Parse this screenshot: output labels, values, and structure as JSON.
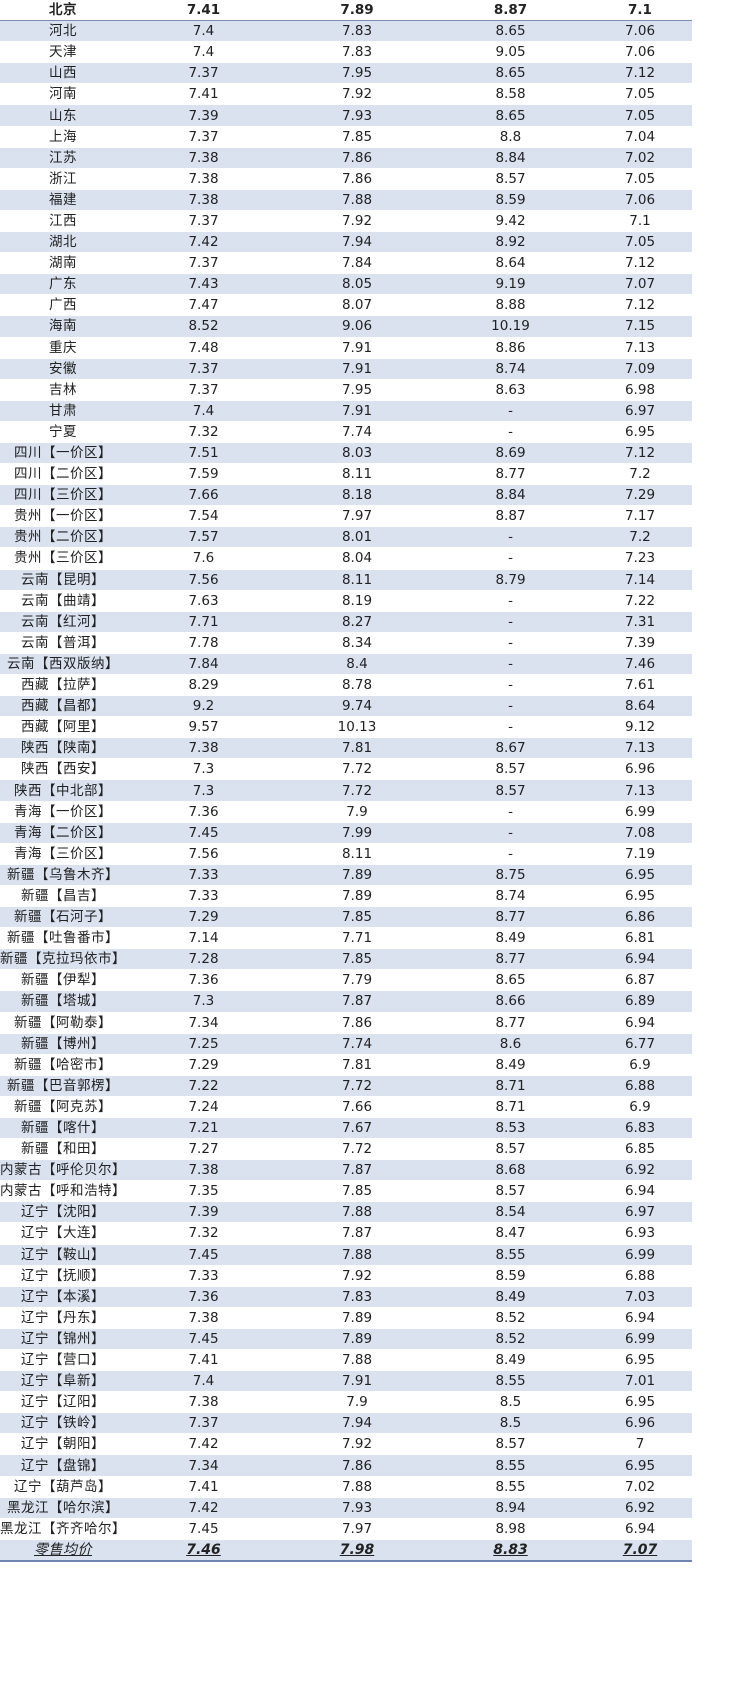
{
  "rows": [
    {
      "region": "北京",
      "v1": "7.41",
      "v2": "7.89",
      "v3": "8.87",
      "v4": "7.1"
    },
    {
      "region": "河北",
      "v1": "7.4",
      "v2": "7.83",
      "v3": "8.65",
      "v4": "7.06"
    },
    {
      "region": "天津",
      "v1": "7.4",
      "v2": "7.83",
      "v3": "9.05",
      "v4": "7.06"
    },
    {
      "region": "山西",
      "v1": "7.37",
      "v2": "7.95",
      "v3": "8.65",
      "v4": "7.12"
    },
    {
      "region": "河南",
      "v1": "7.41",
      "v2": "7.92",
      "v3": "8.58",
      "v4": "7.05"
    },
    {
      "region": "山东",
      "v1": "7.39",
      "v2": "7.93",
      "v3": "8.65",
      "v4": "7.05"
    },
    {
      "region": "上海",
      "v1": "7.37",
      "v2": "7.85",
      "v3": "8.8",
      "v4": "7.04"
    },
    {
      "region": "江苏",
      "v1": "7.38",
      "v2": "7.86",
      "v3": "8.84",
      "v4": "7.02"
    },
    {
      "region": "浙江",
      "v1": "7.38",
      "v2": "7.86",
      "v3": "8.57",
      "v4": "7.05"
    },
    {
      "region": "福建",
      "v1": "7.38",
      "v2": "7.88",
      "v3": "8.59",
      "v4": "7.06"
    },
    {
      "region": "江西",
      "v1": "7.37",
      "v2": "7.92",
      "v3": "9.42",
      "v4": "7.1"
    },
    {
      "region": "湖北",
      "v1": "7.42",
      "v2": "7.94",
      "v3": "8.92",
      "v4": "7.05"
    },
    {
      "region": "湖南",
      "v1": "7.37",
      "v2": "7.84",
      "v3": "8.64",
      "v4": "7.12"
    },
    {
      "region": "广东",
      "v1": "7.43",
      "v2": "8.05",
      "v3": "9.19",
      "v4": "7.07"
    },
    {
      "region": "广西",
      "v1": "7.47",
      "v2": "8.07",
      "v3": "8.88",
      "v4": "7.12"
    },
    {
      "region": "海南",
      "v1": "8.52",
      "v2": "9.06",
      "v3": "10.19",
      "v4": "7.15"
    },
    {
      "region": "重庆",
      "v1": "7.48",
      "v2": "7.91",
      "v3": "8.86",
      "v4": "7.13"
    },
    {
      "region": "安徽",
      "v1": "7.37",
      "v2": "7.91",
      "v3": "8.74",
      "v4": "7.09"
    },
    {
      "region": "吉林",
      "v1": "7.37",
      "v2": "7.95",
      "v3": "8.63",
      "v4": "6.98"
    },
    {
      "region": "甘肃",
      "v1": "7.4",
      "v2": "7.91",
      "v3": "-",
      "v4": "6.97"
    },
    {
      "region": "宁夏",
      "v1": "7.32",
      "v2": "7.74",
      "v3": "-",
      "v4": "6.95"
    },
    {
      "region": "四川【一价区】",
      "v1": "7.51",
      "v2": "8.03",
      "v3": "8.69",
      "v4": "7.12"
    },
    {
      "region": "四川【二价区】",
      "v1": "7.59",
      "v2": "8.11",
      "v3": "8.77",
      "v4": "7.2"
    },
    {
      "region": "四川【三价区】",
      "v1": "7.66",
      "v2": "8.18",
      "v3": "8.84",
      "v4": "7.29"
    },
    {
      "region": "贵州【一价区】",
      "v1": "7.54",
      "v2": "7.97",
      "v3": "8.87",
      "v4": "7.17"
    },
    {
      "region": "贵州【二价区】",
      "v1": "7.57",
      "v2": "8.01",
      "v3": "-",
      "v4": "7.2"
    },
    {
      "region": "贵州【三价区】",
      "v1": "7.6",
      "v2": "8.04",
      "v3": "-",
      "v4": "7.23"
    },
    {
      "region": "云南【昆明】",
      "v1": "7.56",
      "v2": "8.11",
      "v3": "8.79",
      "v4": "7.14"
    },
    {
      "region": "云南【曲靖】",
      "v1": "7.63",
      "v2": "8.19",
      "v3": "-",
      "v4": "7.22"
    },
    {
      "region": "云南【红河】",
      "v1": "7.71",
      "v2": "8.27",
      "v3": "-",
      "v4": "7.31"
    },
    {
      "region": "云南【普洱】",
      "v1": "7.78",
      "v2": "8.34",
      "v3": "-",
      "v4": "7.39"
    },
    {
      "region": "云南【西双版纳】",
      "v1": "7.84",
      "v2": "8.4",
      "v3": "-",
      "v4": "7.46"
    },
    {
      "region": "西藏【拉萨】",
      "v1": "8.29",
      "v2": "8.78",
      "v3": "-",
      "v4": "7.61"
    },
    {
      "region": "西藏【昌都】",
      "v1": "9.2",
      "v2": "9.74",
      "v3": "-",
      "v4": "8.64"
    },
    {
      "region": "西藏【阿里】",
      "v1": "9.57",
      "v2": "10.13",
      "v3": "-",
      "v4": "9.12"
    },
    {
      "region": "陕西【陕南】",
      "v1": "7.38",
      "v2": "7.81",
      "v3": "8.67",
      "v4": "7.13"
    },
    {
      "region": "陕西【西安】",
      "v1": "7.3",
      "v2": "7.72",
      "v3": "8.57",
      "v4": "6.96"
    },
    {
      "region": "陕西【中北部】",
      "v1": "7.3",
      "v2": "7.72",
      "v3": "8.57",
      "v4": "7.13"
    },
    {
      "region": "青海【一价区】",
      "v1": "7.36",
      "v2": "7.9",
      "v3": "-",
      "v4": "6.99"
    },
    {
      "region": "青海【二价区】",
      "v1": "7.45",
      "v2": "7.99",
      "v3": "-",
      "v4": "7.08"
    },
    {
      "region": "青海【三价区】",
      "v1": "7.56",
      "v2": "8.11",
      "v3": "-",
      "v4": "7.19"
    },
    {
      "region": "新疆【乌鲁木齐】",
      "v1": "7.33",
      "v2": "7.89",
      "v3": "8.75",
      "v4": "6.95"
    },
    {
      "region": "新疆【昌吉】",
      "v1": "7.33",
      "v2": "7.89",
      "v3": "8.74",
      "v4": "6.95"
    },
    {
      "region": "新疆【石河子】",
      "v1": "7.29",
      "v2": "7.85",
      "v3": "8.77",
      "v4": "6.86"
    },
    {
      "region": "新疆【吐鲁番市】",
      "v1": "7.14",
      "v2": "7.71",
      "v3": "8.49",
      "v4": "6.81"
    },
    {
      "region": "新疆【克拉玛依市】",
      "v1": "7.28",
      "v2": "7.85",
      "v3": "8.77",
      "v4": "6.94"
    },
    {
      "region": "新疆【伊犁】",
      "v1": "7.36",
      "v2": "7.79",
      "v3": "8.65",
      "v4": "6.87"
    },
    {
      "region": "新疆【塔城】",
      "v1": "7.3",
      "v2": "7.87",
      "v3": "8.66",
      "v4": "6.89"
    },
    {
      "region": "新疆【阿勒泰】",
      "v1": "7.34",
      "v2": "7.86",
      "v3": "8.77",
      "v4": "6.94"
    },
    {
      "region": "新疆【博州】",
      "v1": "7.25",
      "v2": "7.74",
      "v3": "8.6",
      "v4": "6.77"
    },
    {
      "region": "新疆【哈密市】",
      "v1": "7.29",
      "v2": "7.81",
      "v3": "8.49",
      "v4": "6.9"
    },
    {
      "region": "新疆【巴音郭楞】",
      "v1": "7.22",
      "v2": "7.72",
      "v3": "8.71",
      "v4": "6.88"
    },
    {
      "region": "新疆【阿克苏】",
      "v1": "7.24",
      "v2": "7.66",
      "v3": "8.71",
      "v4": "6.9"
    },
    {
      "region": "新疆【喀什】",
      "v1": "7.21",
      "v2": "7.67",
      "v3": "8.53",
      "v4": "6.83"
    },
    {
      "region": "新疆【和田】",
      "v1": "7.27",
      "v2": "7.72",
      "v3": "8.57",
      "v4": "6.85"
    },
    {
      "region": "内蒙古【呼伦贝尔】",
      "v1": "7.38",
      "v2": "7.87",
      "v3": "8.68",
      "v4": "6.92"
    },
    {
      "region": "内蒙古【呼和浩特】",
      "v1": "7.35",
      "v2": "7.85",
      "v3": "8.57",
      "v4": "6.94"
    },
    {
      "region": "辽宁【沈阳】",
      "v1": "7.39",
      "v2": "7.88",
      "v3": "8.54",
      "v4": "6.97"
    },
    {
      "region": "辽宁【大连】",
      "v1": "7.32",
      "v2": "7.87",
      "v3": "8.47",
      "v4": "6.93"
    },
    {
      "region": "辽宁【鞍山】",
      "v1": "7.45",
      "v2": "7.88",
      "v3": "8.55",
      "v4": "6.99"
    },
    {
      "region": "辽宁【抚顺】",
      "v1": "7.33",
      "v2": "7.92",
      "v3": "8.59",
      "v4": "6.88"
    },
    {
      "region": "辽宁【本溪】",
      "v1": "7.36",
      "v2": "7.83",
      "v3": "8.49",
      "v4": "7.03"
    },
    {
      "region": "辽宁【丹东】",
      "v1": "7.38",
      "v2": "7.89",
      "v3": "8.52",
      "v4": "6.94"
    },
    {
      "region": "辽宁【锦州】",
      "v1": "7.45",
      "v2": "7.89",
      "v3": "8.52",
      "v4": "6.99"
    },
    {
      "region": "辽宁【营口】",
      "v1": "7.41",
      "v2": "7.88",
      "v3": "8.49",
      "v4": "6.95"
    },
    {
      "region": "辽宁【阜新】",
      "v1": "7.4",
      "v2": "7.91",
      "v3": "8.55",
      "v4": "7.01"
    },
    {
      "region": "辽宁【辽阳】",
      "v1": "7.38",
      "v2": "7.9",
      "v3": "8.5",
      "v4": "6.95"
    },
    {
      "region": "辽宁【铁岭】",
      "v1": "7.37",
      "v2": "7.94",
      "v3": "8.5",
      "v4": "6.96"
    },
    {
      "region": "辽宁【朝阳】",
      "v1": "7.42",
      "v2": "7.92",
      "v3": "8.57",
      "v4": "7"
    },
    {
      "region": "辽宁【盘锦】",
      "v1": "7.34",
      "v2": "7.86",
      "v3": "8.55",
      "v4": "6.95"
    },
    {
      "region": "辽宁【葫芦岛】",
      "v1": "7.41",
      "v2": "7.88",
      "v3": "8.55",
      "v4": "7.02"
    },
    {
      "region": "黑龙江【哈尔滨】",
      "v1": "7.42",
      "v2": "7.93",
      "v3": "8.94",
      "v4": "6.92"
    },
    {
      "region": "黑龙江【齐齐哈尔】",
      "v1": "7.45",
      "v2": "7.97",
      "v3": "8.98",
      "v4": "6.94"
    }
  ],
  "average": {
    "label": "零售均价",
    "v1": "7.46",
    "v2": "7.98",
    "v3": "8.83",
    "v4": "7.07"
  }
}
